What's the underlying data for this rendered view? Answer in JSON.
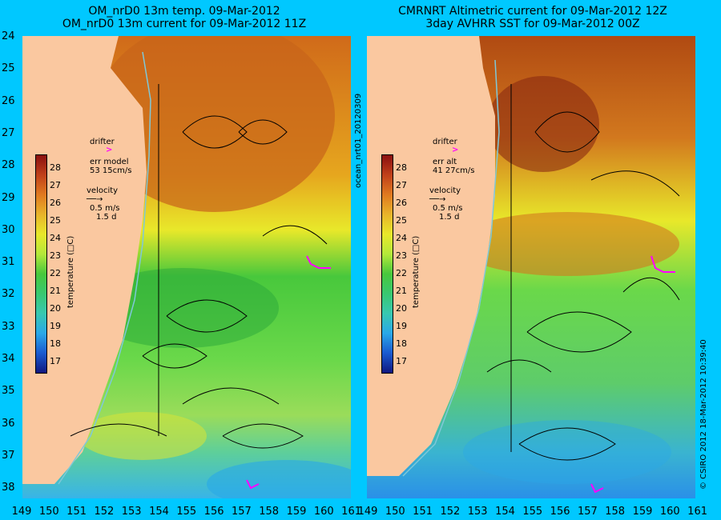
{
  "titles": {
    "left": [
      "OM_nrD0 13m temp. 09-Mar-2012",
      "OM_nrD0 13m current for 09-Mar-2012 11Z"
    ],
    "right": [
      "CMRNRT Altimetric current for 09-Mar-2012 12Z",
      "3day AVHRR SST for 09-Mar-2012 00Z"
    ]
  },
  "y_labels": [
    "24",
    "25",
    "26",
    "27",
    "28",
    "29",
    "30",
    "31",
    "32",
    "33",
    "34",
    "35",
    "36",
    "37",
    "38"
  ],
  "x_labels": [
    "149",
    "150",
    "151",
    "152",
    "153",
    "154",
    "155",
    "156",
    "157",
    "158",
    "159",
    "160",
    "161"
  ],
  "legend_left": {
    "drifter_label": "drifter",
    "err_label": "err model",
    "err_value": "53 15cm/s",
    "velocity_label": "velocity",
    "velocity_scale": "0.5 m/s",
    "velocity_time": "1.5 d"
  },
  "legend_right": {
    "drifter_label": "drifter",
    "err_label": "err alt",
    "err_value": "41 27cm/s",
    "velocity_label": "velocity",
    "velocity_scale": "0.5 m/s",
    "velocity_time": "1.5 d"
  },
  "colorbar": {
    "ticks": [
      "28",
      "27",
      "26",
      "25",
      "24",
      "23",
      "22",
      "21",
      "20",
      "19",
      "18",
      "17"
    ],
    "label": "temperature (□C)"
  },
  "side_text": {
    "run_id": "ocean_nrt01_20120309",
    "credit": "© CSIRO 2012  18-Mar-2012 10:39:40"
  },
  "colors": {
    "background": "#00c8ff",
    "land": "#fac8a0",
    "drifter": "#ff00ff"
  }
}
